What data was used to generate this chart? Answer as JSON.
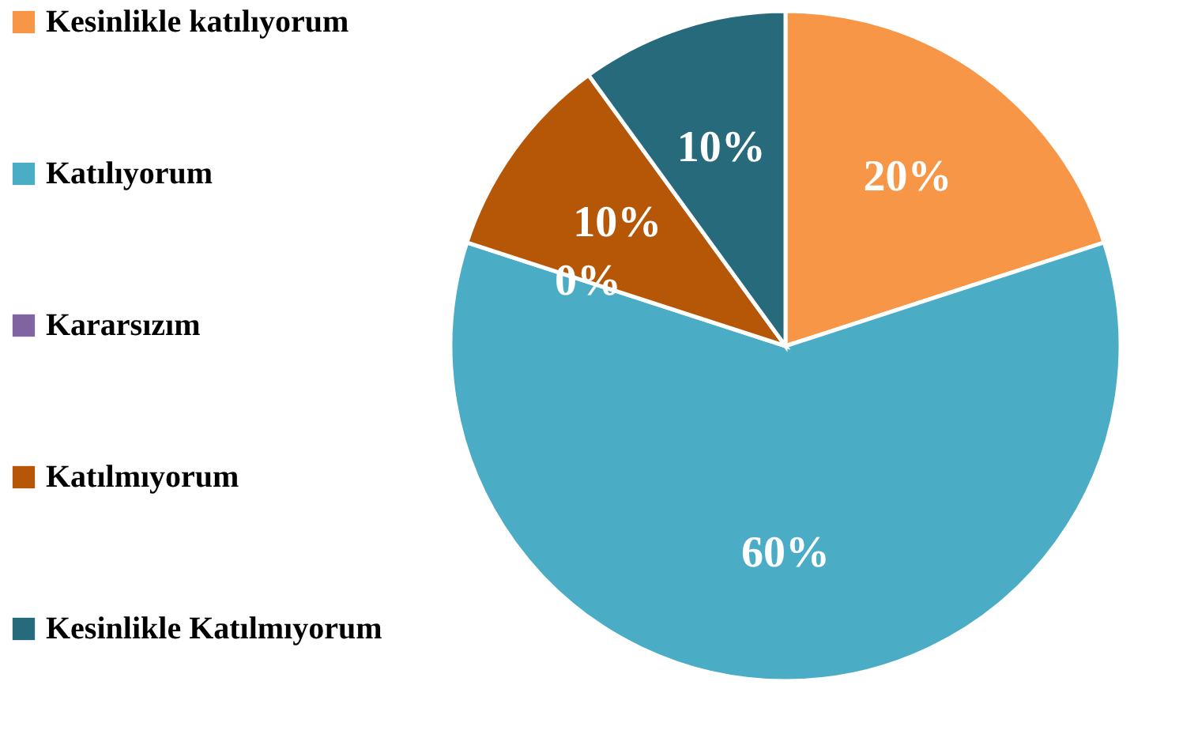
{
  "chart_data": {
    "type": "pie",
    "categories": [
      "Kesinlikle katılıyorum",
      "Katılıyorum",
      "Kararsızım",
      "Katılmıyorum",
      "Kesinlikle Katılmıyorum"
    ],
    "values": [
      20,
      60,
      0,
      10,
      10
    ],
    "value_labels": [
      "20%",
      "60%",
      "0%",
      "10%",
      "10%"
    ],
    "colors": [
      "#f79646",
      "#4bacc6",
      "#8064a2",
      "#b65708",
      "#276a7c"
    ],
    "legend": "left"
  }
}
